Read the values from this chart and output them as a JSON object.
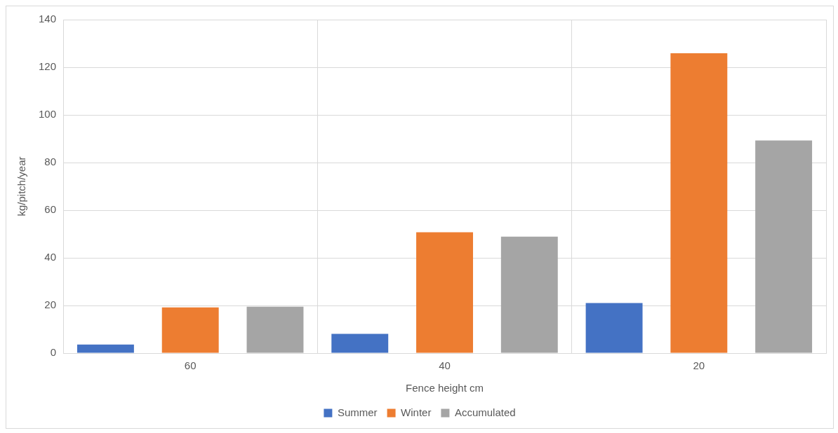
{
  "chart_data": {
    "type": "bar",
    "xlabel": "Fence height cm",
    "ylabel": "kg/pitch/year",
    "categories": [
      "60",
      "40",
      "20"
    ],
    "series": [
      {
        "name": "Summer",
        "color": "#4472c4",
        "values": [
          3.6,
          8.1,
          21.0
        ]
      },
      {
        "name": "Winter",
        "color": "#ed7d31",
        "values": [
          19.2,
          50.7,
          125.9
        ]
      },
      {
        "name": "Accumulated",
        "color": "#a5a5a5",
        "values": [
          19.5,
          48.9,
          89.3
        ]
      }
    ],
    "ylim": [
      0,
      140
    ],
    "yticks": [
      0,
      20,
      40,
      60,
      80,
      100,
      120,
      140
    ],
    "grid": true,
    "legend": "bottom"
  }
}
